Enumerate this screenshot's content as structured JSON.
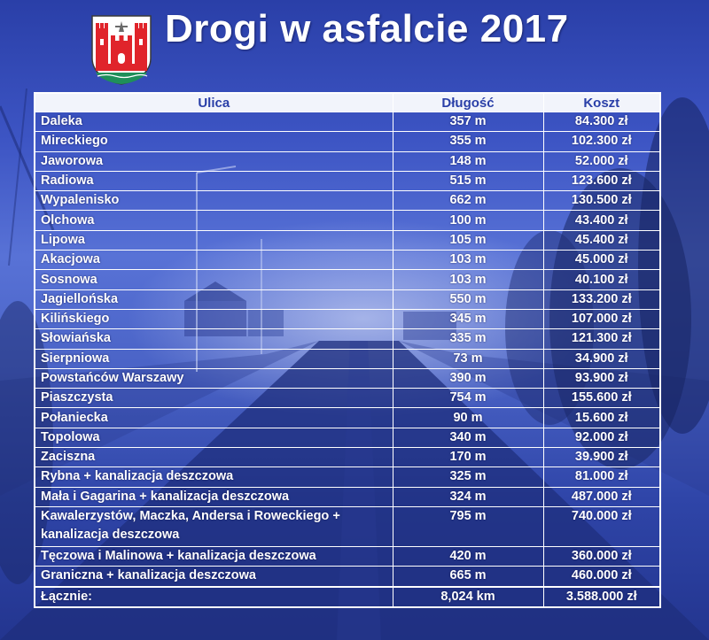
{
  "title": "Drogi w asfalcie 2017",
  "colors": {
    "header_bg": "#f2f4fb",
    "header_text": "#2a3fa8",
    "cell_text": "#ffffff",
    "background": "#3d55c4"
  },
  "logo": {
    "icon": "city-coat-of-arms-icon",
    "tower_color": "#e0242b",
    "shield_bg": "#ffffff"
  },
  "table": {
    "headers": [
      "Ulica",
      "Długość",
      "Koszt"
    ],
    "rows": [
      [
        "Daleka",
        "357 m",
        "84.300 zł"
      ],
      [
        "Mireckiego",
        "355 m",
        "102.300 zł"
      ],
      [
        "Jaworowa",
        "148 m",
        "52.000 zł"
      ],
      [
        "Radiowa",
        "515 m",
        "123.600 zł"
      ],
      [
        "Wypalenisko",
        "662 m",
        "130.500 zł"
      ],
      [
        "Olchowa",
        "100 m",
        "43.400 zł"
      ],
      [
        "Lipowa",
        "105 m",
        "45.400 zł"
      ],
      [
        "Akacjowa",
        "103 m",
        "45.000 zł"
      ],
      [
        "Sosnowa",
        "103 m",
        "40.100 zł"
      ],
      [
        "Jagiellońska",
        "550 m",
        "133.200 zł"
      ],
      [
        "Kilińskiego",
        "345 m",
        "107.000 zł"
      ],
      [
        "Słowiańska",
        "335 m",
        "121.300 zł"
      ],
      [
        "Sierpniowa",
        "73 m",
        "34.900 zł"
      ],
      [
        "Powstańców Warszawy",
        "390 m",
        "93.900 zł"
      ],
      [
        "Piaszczysta",
        "754 m",
        "155.600 zł"
      ],
      [
        "Połaniecka",
        "90 m",
        "15.600 zł"
      ],
      [
        "Topolowa",
        "340 m",
        "92.000 zł"
      ],
      [
        "Zaciszna",
        "170 m",
        "39.900 zł"
      ],
      [
        "Rybna + kanalizacja deszczowa",
        "325 m",
        "81.000 zł"
      ],
      [
        "Mała i Gagarina + kanalizacja deszczowa",
        "324 m",
        "487.000 zł"
      ],
      [
        "Kawalerzystów, Maczka, Andersa i Roweckiego + kanalizacja deszczowa",
        "795 m",
        "740.000 zł"
      ],
      [
        "Tęczowa i Malinowa + kanalizacja deszczowa",
        "420 m",
        "360.000 zł"
      ],
      [
        "Graniczna + kanalizacja deszczowa",
        "665 m",
        "460.000 zł"
      ]
    ],
    "total": [
      "Łącznie:",
      "8,024 km",
      "3.588.000 zł"
    ]
  }
}
